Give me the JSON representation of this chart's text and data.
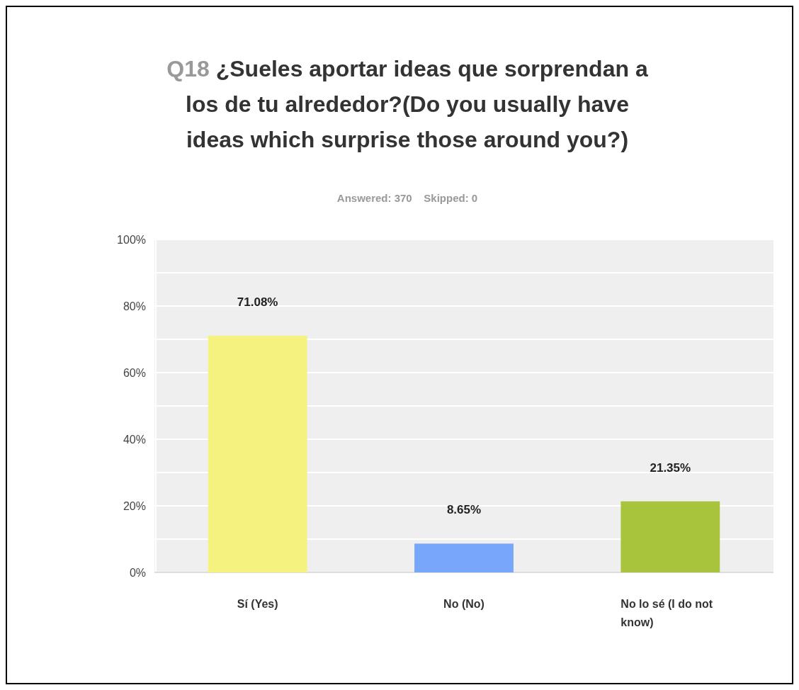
{
  "chart_data": {
    "type": "bar",
    "title": "Q18 ¿Sueles aportar ideas que sorprendan a los de tu alrededor?(Do you usually have ideas which surprise those around you?)",
    "subtitle": "Answered: 370    Skipped: 0",
    "categories": [
      "Sí (Yes)",
      "No (No)",
      "No lo sé (I do not know)"
    ],
    "values": [
      71.08,
      8.65,
      21.35
    ],
    "colors": [
      "#f6f27f",
      "#78a6f8",
      "#a8c43c"
    ],
    "value_labels": [
      "71.08%",
      "8.65%",
      "21.35%"
    ],
    "ylim": [
      0,
      100
    ],
    "yticks": [
      {
        "value": 0,
        "label": "0%"
      },
      {
        "value": 10,
        "label": null
      },
      {
        "value": 20,
        "label": "20%"
      },
      {
        "value": 30,
        "label": null
      },
      {
        "value": 40,
        "label": "40%"
      },
      {
        "value": 50,
        "label": null
      },
      {
        "value": 60,
        "label": "60%"
      },
      {
        "value": 70,
        "label": null
      },
      {
        "value": 80,
        "label": "80%"
      },
      {
        "value": 90,
        "label": null
      },
      {
        "value": 100,
        "label": "100%"
      }
    ],
    "grid": "y"
  }
}
